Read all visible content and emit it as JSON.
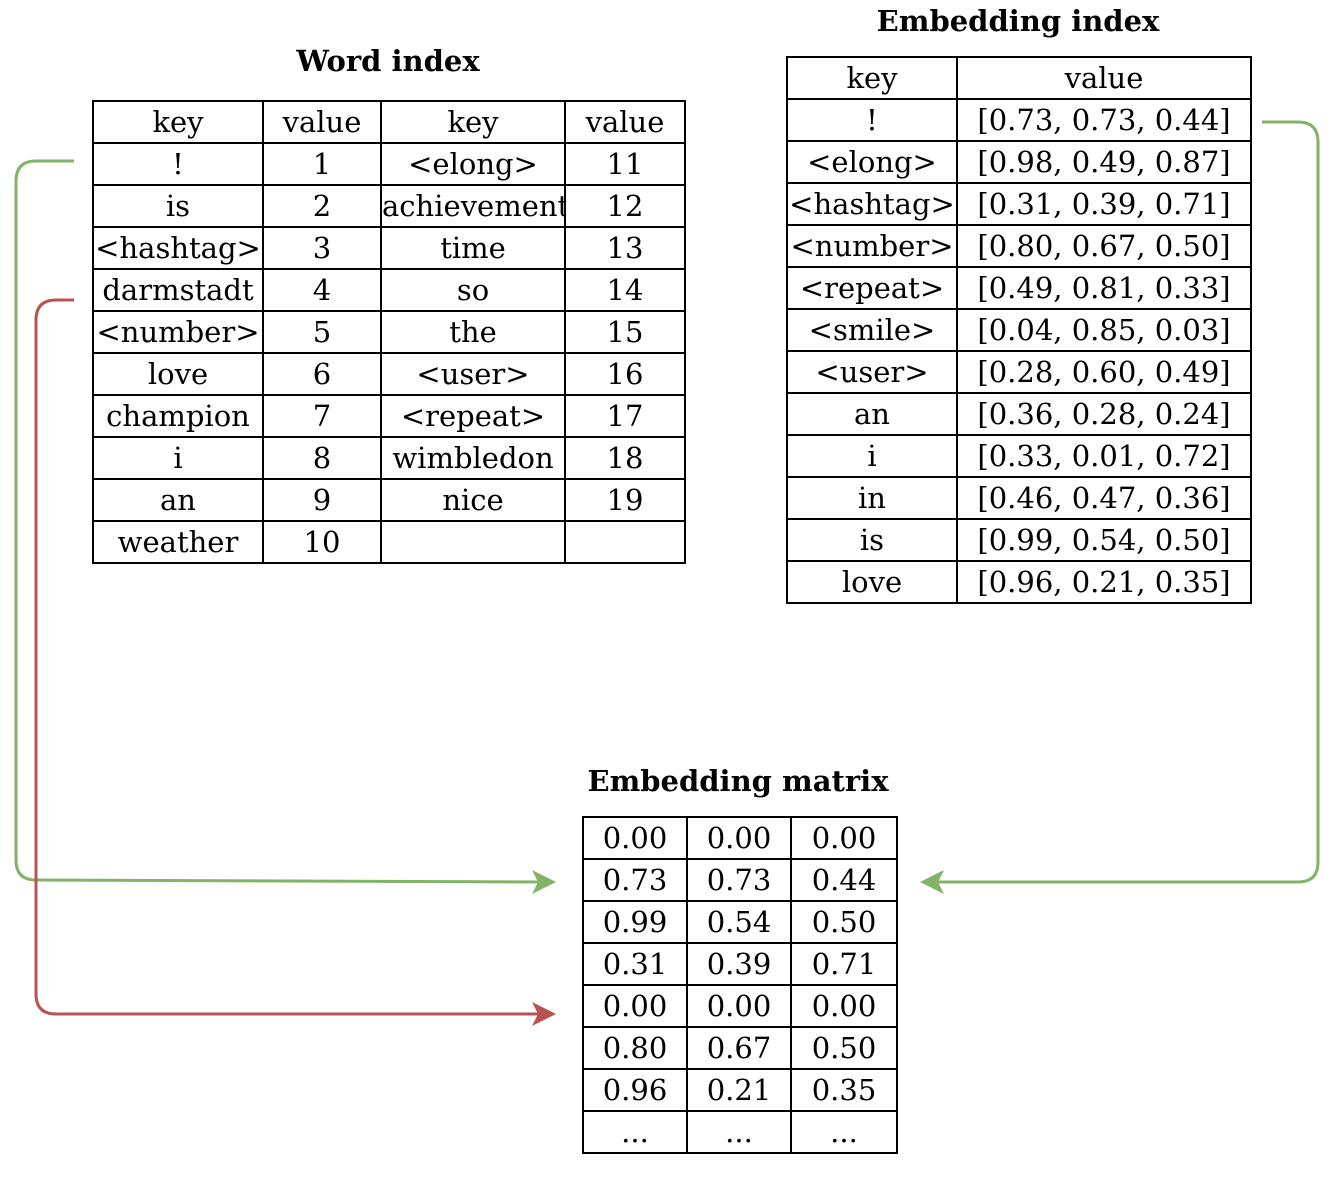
{
  "word_index": {
    "title": "Word index",
    "headers": [
      "key",
      "value",
      "key",
      "value"
    ],
    "rows": [
      [
        "!",
        "1",
        "<elong>",
        "11"
      ],
      [
        "is",
        "2",
        "achievement",
        "12"
      ],
      [
        "<hashtag>",
        "3",
        "time",
        "13"
      ],
      [
        "darmstadt",
        "4",
        "so",
        "14"
      ],
      [
        "<number>",
        "5",
        "the",
        "15"
      ],
      [
        "love",
        "6",
        "<user>",
        "16"
      ],
      [
        "champion",
        "7",
        "<repeat>",
        "17"
      ],
      [
        "i",
        "8",
        "wimbledon",
        "18"
      ],
      [
        "an",
        "9",
        "nice",
        "19"
      ],
      [
        "weather",
        "10",
        "",
        ""
      ]
    ]
  },
  "embedding_index": {
    "title": "Embedding index",
    "headers": [
      "key",
      "value"
    ],
    "rows": [
      [
        "!",
        "[0.73, 0.73, 0.44]"
      ],
      [
        "<elong>",
        "[0.98, 0.49, 0.87]"
      ],
      [
        "<hashtag>",
        "[0.31, 0.39, 0.71]"
      ],
      [
        "<number>",
        "[0.80, 0.67, 0.50]"
      ],
      [
        "<repeat>",
        "[0.49, 0.81, 0.33]"
      ],
      [
        "<smile>",
        "[0.04, 0.85, 0.03]"
      ],
      [
        "<user>",
        "[0.28, 0.60, 0.49]"
      ],
      [
        "an",
        "[0.36, 0.28, 0.24]"
      ],
      [
        "i",
        "[0.33, 0.01, 0.72]"
      ],
      [
        "in",
        "[0.46, 0.47, 0.36]"
      ],
      [
        "is",
        "[0.99, 0.54, 0.50]"
      ],
      [
        "love",
        "[0.96, 0.21, 0.35]"
      ]
    ]
  },
  "embedding_matrix": {
    "title": "Embedding matrix",
    "rows": [
      [
        "0.00",
        "0.00",
        "0.00"
      ],
      [
        "0.73",
        "0.73",
        "0.44"
      ],
      [
        "0.99",
        "0.54",
        "0.50"
      ],
      [
        "0.31",
        "0.39",
        "0.71"
      ],
      [
        "0.00",
        "0.00",
        "0.00"
      ],
      [
        "0.80",
        "0.67",
        "0.50"
      ],
      [
        "0.96",
        "0.21",
        "0.35"
      ],
      [
        "...",
        "...",
        "..."
      ]
    ]
  },
  "colors": {
    "found_arrow": "#82b366",
    "missing_arrow": "#b85450"
  }
}
